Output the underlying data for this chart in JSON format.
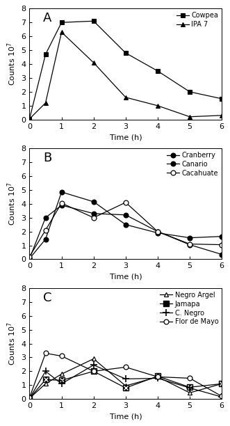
{
  "panel_A": {
    "label": "A",
    "series": [
      {
        "name": "Cowpea",
        "x": [
          0,
          0.5,
          1,
          2,
          3,
          4,
          5,
          6
        ],
        "y": [
          0.05,
          4.7,
          7.0,
          7.1,
          4.8,
          3.5,
          2.0,
          1.5
        ],
        "marker": "s",
        "fillstyle": "full",
        "color": "black",
        "ms": 5
      },
      {
        "name": "IPA 7",
        "x": [
          0,
          0.5,
          1,
          2,
          3,
          4,
          5,
          6
        ],
        "y": [
          0.05,
          1.2,
          6.3,
          4.1,
          1.6,
          1.0,
          0.2,
          0.3
        ],
        "marker": "^",
        "fillstyle": "full",
        "color": "black",
        "ms": 5
      }
    ],
    "legend_loc": "upper right",
    "ylim": [
      0,
      8
    ],
    "yticks": [
      0,
      1,
      2,
      3,
      4,
      5,
      6,
      7,
      8
    ],
    "xlim": [
      0,
      6
    ],
    "xticks": [
      0,
      1,
      2,
      3,
      4,
      5,
      6
    ],
    "ylabel": "Counts 10$^7$",
    "xlabel": "Time (h)"
  },
  "panel_B": {
    "label": "B",
    "series": [
      {
        "name": "Cranberry",
        "x": [
          0,
          0.5,
          1,
          2,
          3,
          4,
          5,
          6
        ],
        "y": [
          0.05,
          1.45,
          4.85,
          4.15,
          2.5,
          1.9,
          1.55,
          1.65
        ],
        "marker": "o",
        "fillstyle": "full",
        "color": "black",
        "ms": 5
      },
      {
        "name": "Canario",
        "x": [
          0,
          0.5,
          1,
          2,
          3,
          4,
          5,
          6
        ],
        "y": [
          0.05,
          3.0,
          3.9,
          3.3,
          3.2,
          2.0,
          1.05,
          0.35
        ],
        "marker": "o",
        "fillstyle": "full",
        "color": "black",
        "ms": 5
      },
      {
        "name": "Cacahuate",
        "x": [
          0,
          0.5,
          1,
          2,
          3,
          4,
          5,
          6
        ],
        "y": [
          0.2,
          2.1,
          4.05,
          3.0,
          4.1,
          2.0,
          1.1,
          1.05
        ],
        "marker": "o",
        "fillstyle": "none",
        "color": "black",
        "ms": 5
      }
    ],
    "legend_loc": "upper right",
    "ylim": [
      0,
      8
    ],
    "yticks": [
      0,
      1,
      2,
      3,
      4,
      5,
      6,
      7,
      8
    ],
    "xlim": [
      0,
      6
    ],
    "xticks": [
      0,
      1,
      2,
      3,
      4,
      5,
      6
    ],
    "ylabel": "Counts 10$^7$",
    "xlabel": "Time (h)"
  },
  "panel_C": {
    "label": "C",
    "series": [
      {
        "name": "Negro Argel",
        "x": [
          0,
          0.5,
          1,
          2,
          3,
          4,
          5,
          6
        ],
        "y": [
          0.05,
          1.1,
          1.8,
          2.9,
          0.95,
          1.6,
          0.45,
          1.1
        ],
        "marker": "^",
        "fillstyle": "none",
        "color": "black",
        "ms": 5
      },
      {
        "name": "Jamapa",
        "x": [
          0,
          0.5,
          1,
          2,
          3,
          4,
          5,
          6
        ],
        "y": [
          0.05,
          1.4,
          1.35,
          2.0,
          0.8,
          1.65,
          0.85,
          1.1
        ],
        "marker": "X_square",
        "fillstyle": "full",
        "color": "black",
        "ms": 5
      },
      {
        "name": "C. Negro",
        "x": [
          0,
          0.5,
          1,
          2,
          3,
          4,
          5,
          6
        ],
        "y": [
          0.05,
          2.0,
          1.1,
          2.45,
          1.45,
          1.5,
          0.8,
          0.15
        ],
        "marker": "+",
        "fillstyle": "full",
        "color": "black",
        "ms": 6
      },
      {
        "name": "Flor de Mayo",
        "x": [
          0,
          0.5,
          1,
          2,
          3,
          4,
          5,
          6
        ],
        "y": [
          0.1,
          3.3,
          3.1,
          2.0,
          2.3,
          1.6,
          1.5,
          0.2
        ],
        "marker": "o",
        "fillstyle": "none",
        "color": "black",
        "ms": 5
      }
    ],
    "legend_loc": "upper right",
    "ylim": [
      0,
      8
    ],
    "yticks": [
      0,
      1,
      2,
      3,
      4,
      5,
      6,
      7,
      8
    ],
    "xlim": [
      0,
      6
    ],
    "xticks": [
      0,
      1,
      2,
      3,
      4,
      5,
      6
    ],
    "ylabel": "Counts 10$^7$",
    "xlabel": "Time (h)"
  },
  "figure_bg": "#ffffff",
  "axes_bg": "#ffffff",
  "font_size": 8,
  "label_fontsize": 13,
  "legend_fontsize": 7,
  "linewidth": 0.9
}
